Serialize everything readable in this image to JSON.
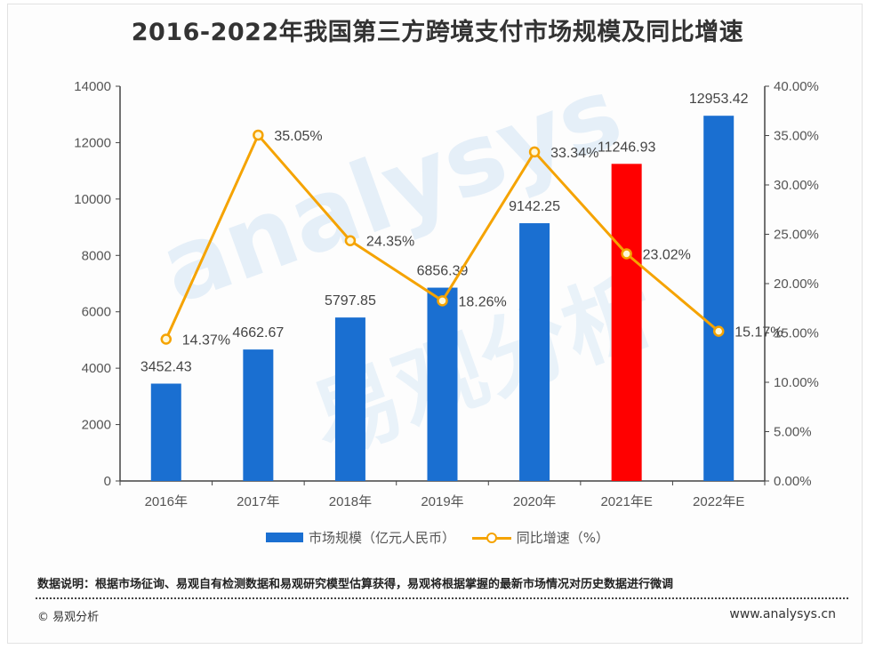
{
  "title": "2016-2022年我国第三方跨境支付市场规模及同比增速",
  "chart_data": {
    "type": "bar+line",
    "title": "2016-2022年我国第三方跨境支付市场规模及同比增速",
    "categories": [
      "2016年",
      "2017年",
      "2018年",
      "2019年",
      "2020年",
      "2021年E",
      "2022年E"
    ],
    "series": [
      {
        "name": "市场规模（亿元人民币）",
        "type": "bar",
        "axis": "left",
        "values": [
          3452.43,
          4662.67,
          5797.85,
          6856.39,
          9142.25,
          11246.93,
          12953.42
        ],
        "labels": [
          "3452.43",
          "4662.67",
          "5797.85",
          "6856.39",
          "9142.25",
          "11246.93",
          "12953.42"
        ],
        "color": "#1a6fd1",
        "highlight": {
          "index": 5,
          "color": "#ff0000"
        }
      },
      {
        "name": "同比增速（%）",
        "type": "line",
        "axis": "right",
        "values": [
          14.37,
          35.05,
          24.35,
          18.26,
          33.34,
          23.02,
          15.17
        ],
        "labels": [
          "14.37%",
          "35.05%",
          "24.35%",
          "18.26%",
          "33.34%",
          "23.02%",
          "15.17%"
        ],
        "color": "#f5a300"
      }
    ],
    "left_axis": {
      "range": [
        0,
        14000
      ],
      "ticks": [
        "0",
        "2000",
        "4000",
        "6000",
        "8000",
        "10000",
        "12000",
        "14000"
      ]
    },
    "right_axis": {
      "range": [
        0,
        40
      ],
      "ticks": [
        "0.00%",
        "5.00%",
        "10.00%",
        "15.00%",
        "20.00%",
        "25.00%",
        "30.00%",
        "35.00%",
        "40.00%"
      ]
    },
    "grid": false,
    "legend": "bottom"
  },
  "legend": {
    "bar": "市场规模（亿元人民币）",
    "line": "同比增速（%）"
  },
  "note": "数据说明：根据市场征询、易观自有检测数据和易观研究模型估算获得，易观将根据掌握的最新市场情况对历史数据进行微调",
  "copyright": "© 易观分析",
  "site": "www.analysys.cn",
  "watermark": {
    "en": "analysys",
    "cn": "易观分析"
  }
}
